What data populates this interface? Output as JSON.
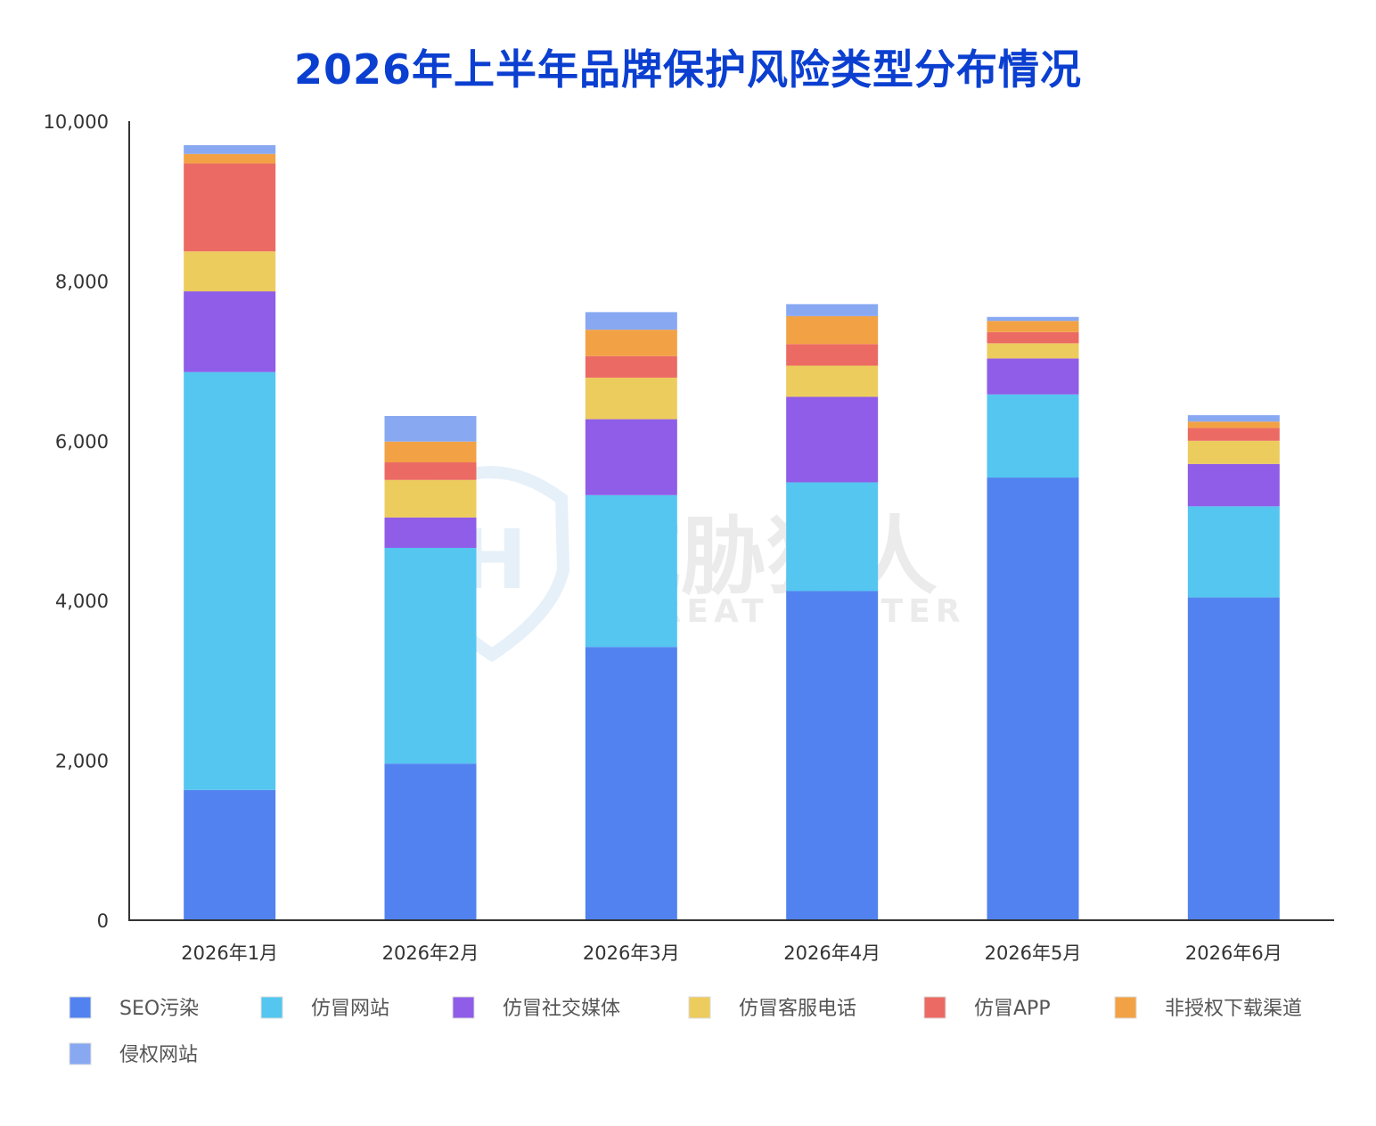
{
  "chart_data": {
    "type": "bar",
    "stacked": true,
    "title": "2026年上半年品牌保护风险类型分布情况",
    "categories": [
      "2026年1月",
      "2026年2月",
      "2026年3月",
      "2026年4月",
      "2026年5月",
      "2026年6月"
    ],
    "ylim": [
      0,
      10000
    ],
    "yticks": [
      "0",
      "2,000",
      "4,000",
      "6,000",
      "8,000",
      "10,000"
    ],
    "ytick_values": [
      0,
      2000,
      4000,
      6000,
      8000,
      10000
    ],
    "grid": false,
    "legend_position": "bottom",
    "series": [
      {
        "name": "SEO污染",
        "color": "#5282f0",
        "values": [
          1630,
          1960,
          3420,
          4120,
          5540,
          4040
        ]
      },
      {
        "name": "仿冒网站",
        "color": "#54c6f0",
        "values": [
          5230,
          2700,
          1900,
          1360,
          1040,
          1140
        ]
      },
      {
        "name": "仿冒社交媒体",
        "color": "#8f5de8",
        "values": [
          1010,
          380,
          950,
          1070,
          450,
          530
        ]
      },
      {
        "name": "仿冒客服电话",
        "color": "#edcc5e",
        "values": [
          500,
          470,
          520,
          390,
          190,
          290
        ]
      },
      {
        "name": "仿冒APP",
        "color": "#ec6a64",
        "values": [
          1100,
          220,
          270,
          270,
          140,
          160
        ]
      },
      {
        "name": "非授权下载渠道",
        "color": "#f2a245",
        "values": [
          120,
          260,
          330,
          350,
          140,
          80
        ]
      },
      {
        "name": "侵权网站",
        "color": "#88a8f2",
        "values": [
          110,
          320,
          220,
          150,
          50,
          80
        ]
      }
    ]
  },
  "watermark": {
    "brand_cn": "威胁猎人",
    "brand_en": "THREAT HUNTER"
  }
}
